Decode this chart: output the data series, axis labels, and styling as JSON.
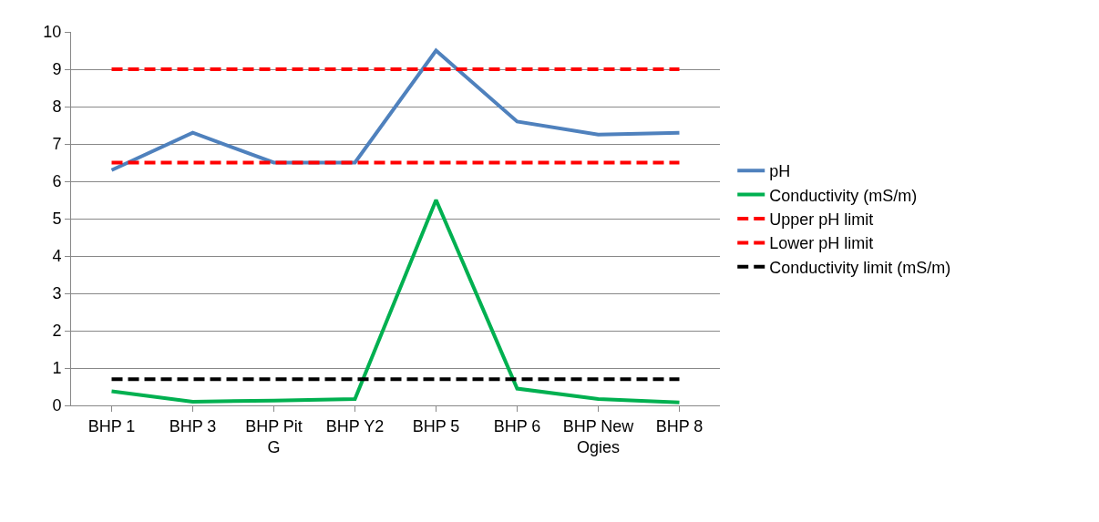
{
  "chart_data": {
    "type": "line",
    "categories": [
      "BHP 1",
      "BHP 3",
      "BHP Pit G",
      "BHP Y2",
      "BHP 5",
      "BHP 6",
      "BHP New Ogies",
      "BHP 8"
    ],
    "series": [
      {
        "name": "pH",
        "color": "#4f81bd",
        "values": [
          6.3,
          7.3,
          6.5,
          6.5,
          9.5,
          7.6,
          7.25,
          7.3
        ]
      },
      {
        "name": "Conductivity (mS/m)",
        "color": "#00b050",
        "values": [
          0.38,
          0.1,
          0.13,
          0.17,
          5.5,
          0.45,
          0.17,
          0.08
        ]
      },
      {
        "name": "Upper pH limit",
        "color": "#ff0000",
        "line_style": "dashed",
        "values": [
          9,
          9,
          9,
          9,
          9,
          9,
          9,
          9
        ]
      },
      {
        "name": "Lower pH limit",
        "color": "#ff0000",
        "line_style": "dashed",
        "values": [
          6.5,
          6.5,
          6.5,
          6.5,
          6.5,
          6.5,
          6.5,
          6.5
        ]
      },
      {
        "name": "Conductivity limit (mS/m)",
        "color": "#000000",
        "line_style": "dashed",
        "values": [
          0.7,
          0.7,
          0.7,
          0.7,
          0.7,
          0.7,
          0.7,
          0.7
        ]
      }
    ],
    "ylim": [
      0,
      10
    ],
    "yticks": [
      0,
      1,
      2,
      3,
      4,
      5,
      6,
      7,
      8,
      9,
      10
    ],
    "grid": "y",
    "legend": "right",
    "marker": "none",
    "line_style": "solid"
  }
}
